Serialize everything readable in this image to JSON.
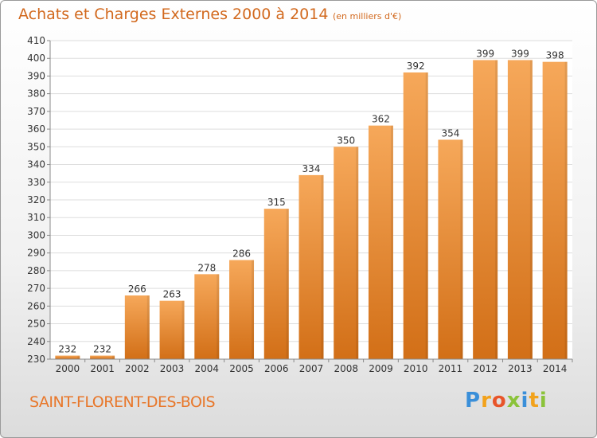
{
  "header": {
    "title": "Achats et Charges Externes 2000 à 2014",
    "subtitle": "(en milliers d'€)"
  },
  "footer": {
    "commune": "SAINT-FLORENT-DES-BOIS",
    "logo_letters": [
      "P",
      "r",
      "o",
      "x",
      "i",
      "t",
      "i"
    ]
  },
  "colors": {
    "bar_light": "#f6a85a",
    "bar_dark": "#d26f17",
    "title": "#d2691e",
    "grid": "#dddddd"
  },
  "chart_data": {
    "type": "bar",
    "title": "Achats et Charges Externes 2000 à 2014",
    "subtitle": "(en milliers d'€)",
    "xlabel": "",
    "ylabel": "",
    "categories": [
      "2000",
      "2001",
      "2002",
      "2003",
      "2004",
      "2005",
      "2006",
      "2007",
      "2008",
      "2009",
      "2010",
      "2011",
      "2012",
      "2013",
      "2014"
    ],
    "values": [
      232,
      232,
      266,
      263,
      278,
      286,
      315,
      334,
      350,
      362,
      392,
      354,
      399,
      399,
      398
    ],
    "ylim": [
      230,
      410
    ],
    "yticks": [
      230,
      240,
      250,
      260,
      270,
      280,
      290,
      300,
      310,
      320,
      330,
      340,
      350,
      360,
      370,
      380,
      390,
      400,
      410
    ],
    "grid": true,
    "legend": "none"
  }
}
